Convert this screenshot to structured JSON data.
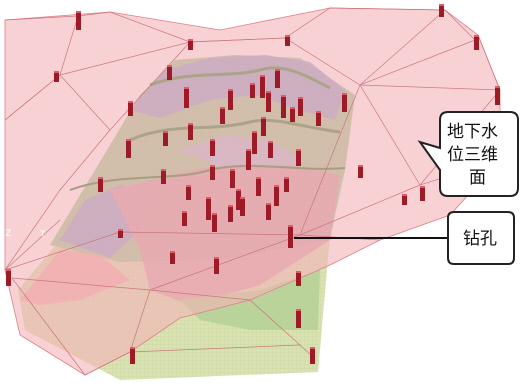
{
  "callouts": {
    "water_table": {
      "lines": [
        "地下水",
        "位三维",
        "面"
      ]
    },
    "borehole": {
      "label": "钻孔"
    }
  },
  "axes": {
    "z": "Z",
    "y": "Y"
  },
  "colors": {
    "water_surface": "#f2b4b8",
    "water_edge": "#e07f87",
    "borehole": "#9c1b26",
    "model_blue": "#8fa0db",
    "model_green": "#9fcf95",
    "model_pink": "#d89aa6",
    "model_base": "#d9e3b0"
  }
}
